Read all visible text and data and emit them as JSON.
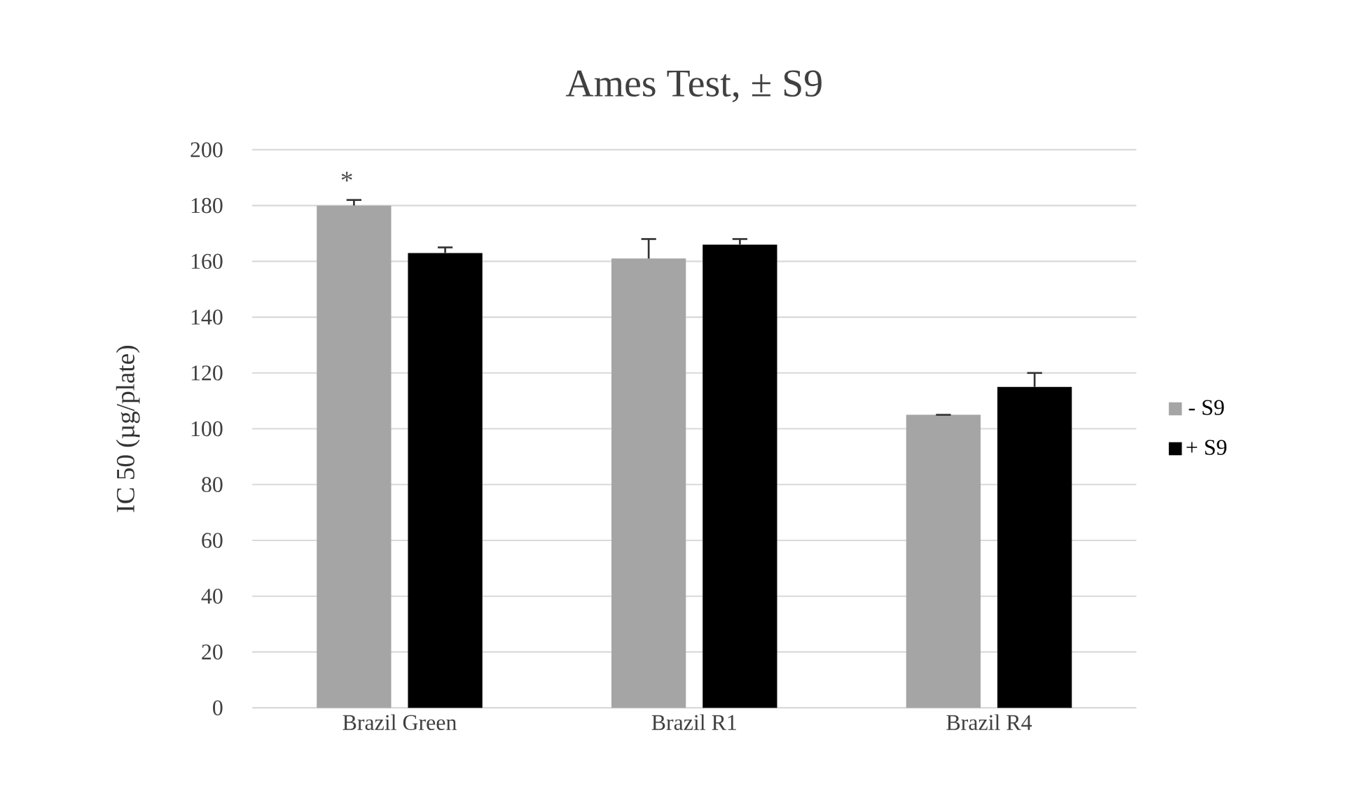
{
  "chart_data": {
    "type": "bar",
    "title": "Ames Test, ± S9",
    "ylabel": "IC 50 (µg/plate)",
    "categories": [
      "Brazil Green",
      "Brazil R1",
      "Brazil R4"
    ],
    "series": [
      {
        "name": "- S9",
        "color": "#a5a5a5",
        "values": [
          180,
          161,
          105
        ],
        "errors": [
          2,
          7,
          null
        ]
      },
      {
        "name": "+ S9",
        "color": "#000000",
        "values": [
          163,
          166,
          115
        ],
        "errors": [
          2,
          2,
          5
        ]
      }
    ],
    "ylim": [
      0,
      200
    ],
    "yticks": [
      0,
      20,
      40,
      60,
      80,
      100,
      120,
      140,
      160,
      180,
      200
    ],
    "grid": "y",
    "legend": "right",
    "annotations": [
      "*"
    ]
  }
}
